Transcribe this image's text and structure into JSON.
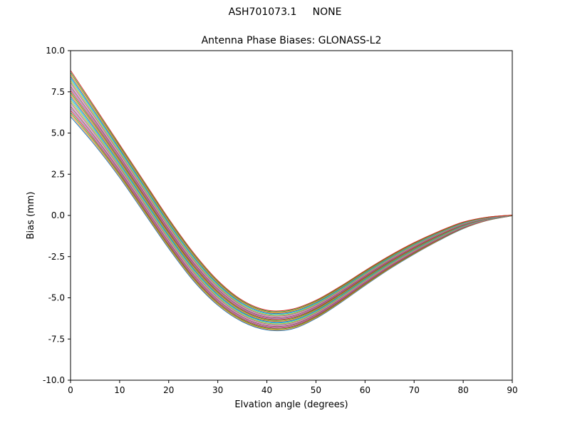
{
  "figure": {
    "suptitle": "ASH701073.1     NONE"
  },
  "chart_data": {
    "type": "line",
    "title": "Antenna Phase Biases: GLONASS-L2",
    "suptitle": "ASH701073.1     NONE",
    "xlabel": "Elvation angle (degrees)",
    "ylabel": "Bias (mm)",
    "xlim": [
      0,
      90
    ],
    "ylim": [
      -10,
      10
    ],
    "xticks": [
      0,
      10,
      20,
      30,
      40,
      50,
      60,
      70,
      80,
      90
    ],
    "yticks": [
      -10.0,
      -7.5,
      -5.0,
      -2.5,
      0.0,
      2.5,
      5.0,
      7.5,
      10.0
    ],
    "xtick_labels": [
      "0",
      "10",
      "20",
      "30",
      "40",
      "50",
      "60",
      "70",
      "80",
      "90"
    ],
    "ytick_labels": [
      "-10.0",
      "-7.5",
      "-5.0",
      "-2.5",
      "0.0",
      "2.5",
      "5.0",
      "7.5",
      "10.0"
    ],
    "grid": false,
    "legend": "none",
    "description": "Bundle of per-satellite phase-bias curves; each series = center_bias + offset * half_width at every elevation sample.",
    "x": [
      0,
      5,
      10,
      15,
      20,
      25,
      30,
      35,
      40,
      45,
      50,
      55,
      60,
      65,
      70,
      75,
      80,
      85,
      90
    ],
    "center_bias": [
      7.4,
      5.4,
      3.3,
      1.1,
      -1.1,
      -3.1,
      -4.7,
      -5.8,
      -6.35,
      -6.3,
      -5.7,
      -4.8,
      -3.8,
      -2.85,
      -2.0,
      -1.25,
      -0.6,
      -0.2,
      0.0
    ],
    "half_width": [
      1.4,
      1.15,
      1.0,
      0.95,
      0.9,
      0.85,
      0.75,
      0.65,
      0.6,
      0.6,
      0.55,
      0.5,
      0.45,
      0.4,
      0.35,
      0.28,
      0.2,
      0.1,
      0.02
    ],
    "series_offsets": [
      -1.0,
      -0.913,
      -0.826,
      -0.739,
      -0.652,
      -0.565,
      -0.478,
      -0.391,
      -0.304,
      -0.217,
      -0.13,
      -0.043,
      0.043,
      0.13,
      0.217,
      0.304,
      0.391,
      0.478,
      0.565,
      0.652,
      0.739,
      0.826,
      0.913,
      1.0
    ],
    "palette": [
      "#1f77b4",
      "#ff7f0e",
      "#2ca02c",
      "#d62728",
      "#9467bd",
      "#8c564b",
      "#e377c2",
      "#7f7f7f",
      "#bcbd22",
      "#17becf"
    ],
    "axes_color": "#000000",
    "background_color": "#ffffff",
    "line_width": 1
  }
}
